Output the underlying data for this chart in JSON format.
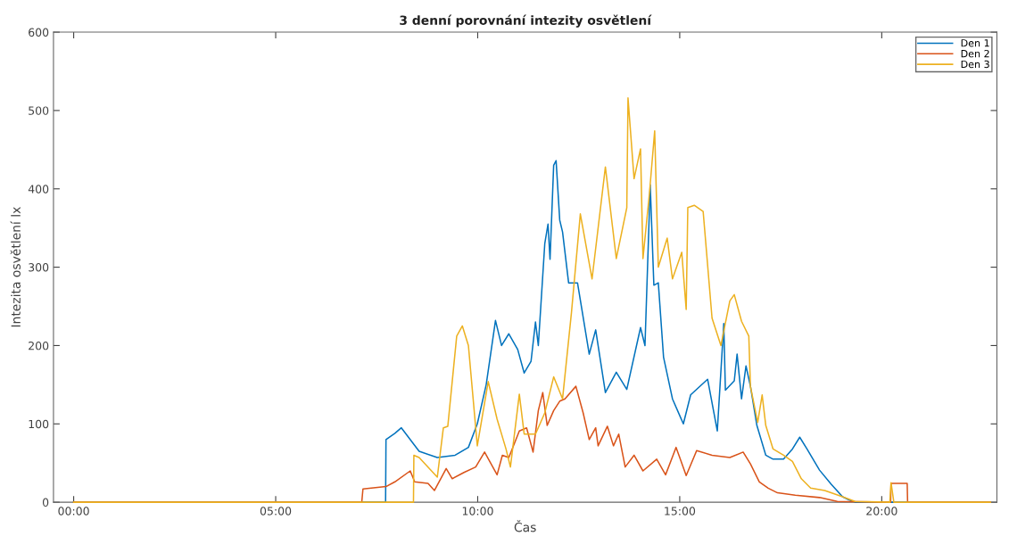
{
  "chart_data": {
    "type": "line",
    "title": "3 denní porovnání intezity osvětlení",
    "xlabel": "Čas",
    "ylabel": "Intezita osvětlení lx",
    "xlim": [
      -0.5,
      22.85
    ],
    "ylim": [
      0,
      600
    ],
    "xticks": [
      {
        "value": 0,
        "label": "00:00"
      },
      {
        "value": 5,
        "label": "05:00"
      },
      {
        "value": 10,
        "label": "10:00"
      },
      {
        "value": 15,
        "label": "15:00"
      },
      {
        "value": 20,
        "label": "20:00"
      }
    ],
    "yticks": [
      0,
      100,
      200,
      300,
      400,
      500,
      600
    ],
    "grid": false,
    "legend": "top right",
    "line_style": "solid",
    "marker": "none",
    "series": [
      {
        "name": "Den 1",
        "color": "#0072bd",
        "x": [
          0,
          7.72,
          7.73,
          7.95,
          8.11,
          8.55,
          9.0,
          9.44,
          9.77,
          9.99,
          10.21,
          10.44,
          10.59,
          10.77,
          10.99,
          11.15,
          11.32,
          11.43,
          11.5,
          11.66,
          11.74,
          11.79,
          11.88,
          11.94,
          12.03,
          12.1,
          12.25,
          12.47,
          12.76,
          12.92,
          13.16,
          13.43,
          13.69,
          14.03,
          14.14,
          14.27,
          14.36,
          14.47,
          14.6,
          14.82,
          15.09,
          15.27,
          15.69,
          15.93,
          16.09,
          16.13,
          16.35,
          16.42,
          16.53,
          16.64,
          16.75,
          16.91,
          17.13,
          17.31,
          17.57,
          17.79,
          17.97,
          18.15,
          18.46,
          18.75,
          19.03,
          19.19,
          19.34,
          22.69
        ],
        "values": [
          0,
          0,
          80,
          88,
          95,
          65,
          57,
          60,
          70,
          100,
          150,
          232,
          200,
          215,
          195,
          165,
          180,
          230,
          200,
          330,
          355,
          310,
          430,
          436,
          360,
          345,
          280,
          280,
          189,
          220,
          140,
          166,
          144,
          223,
          200,
          405,
          277,
          280,
          185,
          132,
          100,
          137,
          157,
          91,
          228,
          143,
          155,
          189,
          132,
          174,
          148,
          98,
          60,
          55,
          55,
          68,
          83,
          68,
          41,
          23,
          7,
          3,
          0,
          0
        ]
      },
      {
        "name": "Den 2",
        "color": "#d95319",
        "x": [
          0,
          7.13,
          7.16,
          7.73,
          7.95,
          8.33,
          8.44,
          8.77,
          8.93,
          9.22,
          9.37,
          9.66,
          9.95,
          10.17,
          10.48,
          10.61,
          10.77,
          11.03,
          11.21,
          11.37,
          11.5,
          11.61,
          11.72,
          11.88,
          12.03,
          12.16,
          12.43,
          12.61,
          12.76,
          12.92,
          12.98,
          13.21,
          13.36,
          13.49,
          13.65,
          13.87,
          14.09,
          14.43,
          14.65,
          14.91,
          15.16,
          15.42,
          15.8,
          16.24,
          16.57,
          16.75,
          16.97,
          17.19,
          17.42,
          17.86,
          18.46,
          18.9,
          20.22,
          20.23,
          20.63,
          20.64,
          22.69
        ],
        "values": [
          0,
          0,
          17,
          20,
          26,
          40,
          26,
          24,
          15,
          43,
          30,
          38,
          45,
          64,
          35,
          60,
          57,
          91,
          95,
          64,
          117,
          140,
          98,
          117,
          129,
          132,
          148,
          114,
          80,
          95,
          72,
          97,
          72,
          87,
          45,
          60,
          40,
          55,
          35,
          70,
          34,
          66,
          60,
          57,
          64,
          49,
          26,
          18,
          12,
          9,
          6,
          1,
          0,
          24,
          24,
          0,
          0
        ]
      },
      {
        "name": "Den 3",
        "color": "#edb120",
        "x": [
          0,
          8.41,
          8.42,
          8.55,
          9.0,
          9.15,
          9.26,
          9.48,
          9.62,
          9.77,
          9.99,
          10.26,
          10.48,
          10.7,
          10.81,
          11.03,
          11.15,
          11.43,
          11.66,
          11.88,
          12.1,
          12.32,
          12.54,
          12.83,
          13.16,
          13.43,
          13.69,
          13.72,
          13.87,
          14.03,
          14.09,
          14.25,
          14.38,
          14.47,
          14.69,
          14.82,
          15.05,
          15.16,
          15.2,
          15.36,
          15.58,
          15.8,
          16.02,
          16.24,
          16.35,
          16.53,
          16.71,
          16.75,
          16.93,
          17.04,
          17.13,
          17.31,
          17.57,
          17.79,
          18.01,
          18.24,
          18.59,
          19.03,
          19.34,
          20.2,
          20.23,
          20.3,
          22.69
        ],
        "values": [
          0,
          0,
          60,
          57,
          32,
          95,
          97,
          212,
          225,
          200,
          72,
          154,
          106,
          68,
          45,
          138,
          87,
          87,
          114,
          160,
          132,
          242,
          368,
          285,
          428,
          311,
          376,
          516,
          413,
          451,
          311,
          394,
          474,
          300,
          337,
          285,
          319,
          246,
          376,
          379,
          371,
          235,
          200,
          257,
          265,
          231,
          212,
          148,
          102,
          137,
          98,
          68,
          60,
          52,
          30,
          18,
          15,
          7,
          1,
          0,
          25,
          0,
          0
        ]
      }
    ]
  }
}
